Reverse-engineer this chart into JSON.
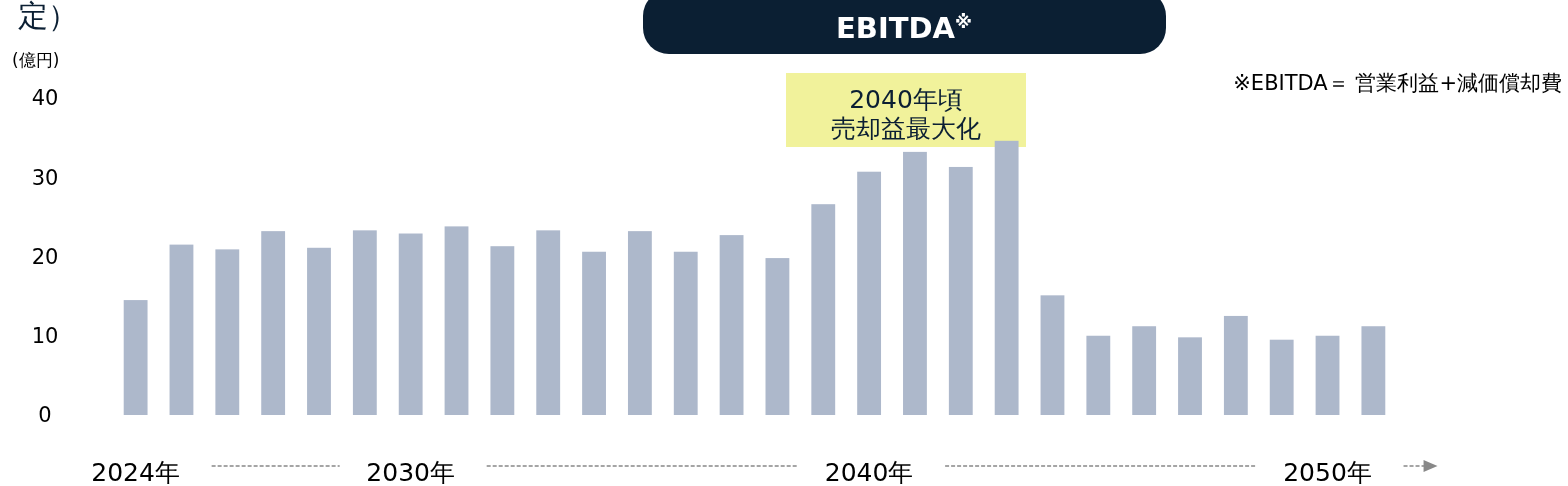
{
  "chart_data": {
    "type": "bar",
    "title": "EBITDA$^{※}$",
    "ylabel": "(億円)",
    "categories": [
      "2024年",
      null,
      null,
      null,
      null,
      null,
      "2030年",
      null,
      null,
      null,
      null,
      null,
      null,
      null,
      null,
      null,
      "2040年",
      null,
      null,
      null,
      null,
      null,
      null,
      null,
      null,
      null,
      "2050年",
      null
    ],
    "values": [
      14.5,
      21.5,
      20.9,
      23.2,
      21.1,
      23.3,
      22.9,
      23.8,
      21.3,
      23.3,
      20.6,
      23.2,
      20.6,
      22.7,
      19.8,
      26.6,
      30.7,
      33.2,
      31.3,
      34.6,
      15.1,
      10.0,
      11.2,
      9.8,
      12.5,
      9.5,
      10.0,
      11.2
    ],
    "color": "#adb8cb",
    "ylim": [
      0,
      40
    ],
    "yticks": [
      0,
      10,
      20,
      30,
      40
    ],
    "annotations": [
      "2040年頃",
      "売却益最大化",
      "※EBITDA＝ 営業利益+減価償却費",
      "定）"
    ]
  }
}
